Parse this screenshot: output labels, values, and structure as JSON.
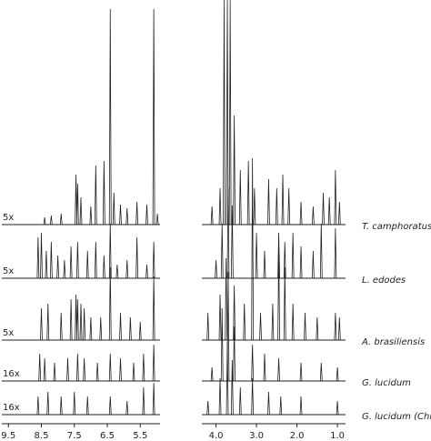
{
  "chart_data": [
    {
      "type": "spectrum",
      "xlim": [
        9.7,
        4.9
      ],
      "xticks": [
        9.5,
        8.5,
        7.5,
        6.5,
        5.5
      ],
      "color": "#222222",
      "series": [
        {
          "name": "5x",
          "x": [
            8.4,
            8.2,
            7.9,
            7.45,
            7.4,
            7.3,
            7.0,
            6.85,
            6.6,
            6.41,
            6.3,
            6.1,
            5.9,
            5.6,
            5.3,
            5.09,
            4.98
          ],
          "values": [
            8,
            10,
            12,
            55,
            45,
            30,
            20,
            65,
            70,
            237,
            35,
            22,
            18,
            25,
            22,
            237,
            12
          ]
        },
        {
          "name": "5x",
          "x": [
            8.6,
            8.5,
            8.35,
            8.2,
            8.0,
            7.8,
            7.6,
            7.4,
            7.1,
            6.85,
            6.6,
            6.41,
            6.2,
            5.9,
            5.6,
            5.3,
            5.09
          ],
          "values": [
            45,
            50,
            30,
            40,
            25,
            20,
            35,
            40,
            30,
            40,
            25,
            60,
            15,
            20,
            45,
            15,
            40
          ]
        },
        {
          "name": "5x",
          "x": [
            8.5,
            8.3,
            7.9,
            7.6,
            7.45,
            7.4,
            7.3,
            7.2,
            7.0,
            6.7,
            6.41,
            6.1,
            5.8,
            5.5,
            5.09
          ],
          "values": [
            35,
            40,
            30,
            45,
            50,
            45,
            40,
            35,
            25,
            25,
            80,
            30,
            25,
            20,
            70
          ]
        },
        {
          "name": "16x",
          "x": [
            8.55,
            8.4,
            8.1,
            7.7,
            7.4,
            7.2,
            6.8,
            6.41,
            6.1,
            5.7,
            5.4,
            5.09
          ],
          "values": [
            30,
            25,
            20,
            25,
            30,
            25,
            20,
            30,
            25,
            20,
            30,
            40
          ]
        },
        {
          "name": "16x",
          "x": [
            8.6,
            8.3,
            7.9,
            7.5,
            7.1,
            6.41,
            5.9,
            5.4,
            5.09
          ],
          "values": [
            20,
            25,
            20,
            25,
            20,
            20,
            15,
            30,
            35
          ]
        }
      ]
    },
    {
      "type": "spectrum",
      "xlim": [
        4.35,
        0.8
      ],
      "xticks": [
        {
          "value": 4,
          "label": "4.0"
        },
        {
          "value": 3,
          "label": "3.0"
        },
        {
          "value": 2,
          "label": "2.0"
        },
        {
          "value": 1,
          "label": "1.0"
        }
      ],
      "color": "#222222",
      "series": [
        {
          "name": "T. camphoratus",
          "x": [
            4.1,
            3.9,
            3.8,
            3.72,
            3.65,
            3.55,
            3.4,
            3.2,
            3.05,
            2.7,
            2.5,
            2.35,
            2.2,
            1.9,
            1.6,
            1.35,
            1.2,
            1.05,
            0.95
          ],
          "values": [
            20,
            40,
            247,
            247,
            247,
            120,
            60,
            70,
            40,
            50,
            40,
            55,
            40,
            25,
            20,
            35,
            30,
            60,
            25
          ]
        },
        {
          "name": "L. edodes",
          "x": [
            4.0,
            3.85,
            3.7,
            3.6,
            3.0,
            2.8,
            2.45,
            2.3,
            2.1,
            1.9,
            1.6,
            1.4,
            1.05
          ],
          "values": [
            20,
            60,
            100,
            80,
            50,
            30,
            50,
            40,
            50,
            35,
            30,
            60,
            55
          ]
        },
        {
          "name": "A. brasiliensis",
          "x": [
            4.2,
            3.9,
            3.75,
            3.55,
            3.3,
            3.1,
            2.9,
            2.6,
            2.45,
            2.3,
            2.1,
            1.8,
            1.5,
            1.05,
            0.95
          ],
          "values": [
            30,
            50,
            90,
            60,
            40,
            200,
            30,
            40,
            100,
            80,
            40,
            30,
            25,
            30,
            25
          ]
        },
        {
          "name": "G. lucidum",
          "x": [
            4.1,
            3.85,
            3.7,
            3.55,
            3.1,
            2.8,
            2.45,
            1.9,
            1.4,
            1.0
          ],
          "values": [
            15,
            80,
            120,
            60,
            40,
            30,
            25,
            20,
            20,
            15
          ]
        },
        {
          "name": "G. lucidum (China)",
          "x": [
            4.2,
            3.9,
            3.72,
            3.6,
            3.4,
            3.1,
            2.7,
            2.4,
            1.9,
            1.0
          ],
          "values": [
            15,
            40,
            80,
            60,
            30,
            40,
            25,
            20,
            20,
            15
          ]
        }
      ]
    }
  ]
}
